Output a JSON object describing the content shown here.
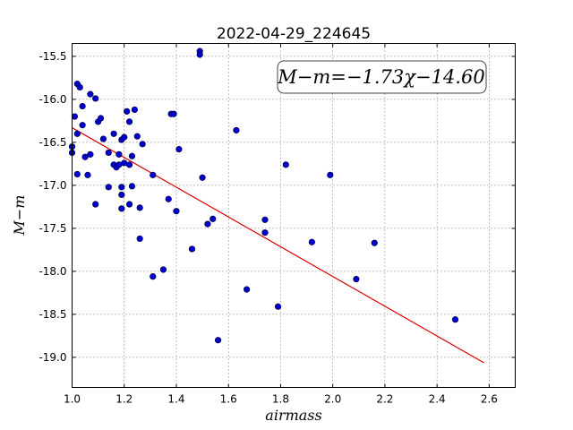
{
  "chart_data": {
    "type": "scatter",
    "title": "2022-04-29_224645",
    "xlabel": "airmass",
    "ylabel": "M−m",
    "xlim": [
      1.0,
      2.7
    ],
    "ylim": [
      -19.35,
      -15.35
    ],
    "xticks": [
      "1.0",
      "1.2",
      "1.4",
      "1.6",
      "1.8",
      "2.0",
      "2.2",
      "2.4",
      "2.6"
    ],
    "yticks": [
      "-15.5",
      "-16.0",
      "-16.5",
      "-17.0",
      "-17.5",
      "-18.0",
      "-18.5",
      "-19.0"
    ],
    "grid": true,
    "annotation": "M−m=−1.73χ−14.60",
    "colors": {
      "points": "#0000cc",
      "fit": "#dd0000"
    },
    "fit_line": {
      "slope": -1.73,
      "intercept": -14.6,
      "x": [
        1.0,
        2.58
      ]
    },
    "series": [
      {
        "points": [
          [
            1.0,
            -16.55
          ],
          [
            1.0,
            -16.62
          ],
          [
            1.01,
            -16.2
          ],
          [
            1.02,
            -15.82
          ],
          [
            1.03,
            -15.86
          ],
          [
            1.02,
            -16.4
          ],
          [
            1.04,
            -16.08
          ],
          [
            1.04,
            -16.3
          ],
          [
            1.05,
            -16.67
          ],
          [
            1.02,
            -16.87
          ],
          [
            1.07,
            -16.64
          ],
          [
            1.06,
            -16.88
          ],
          [
            1.07,
            -15.94
          ],
          [
            1.09,
            -15.99
          ],
          [
            1.1,
            -16.26
          ],
          [
            1.11,
            -16.22
          ],
          [
            1.12,
            -16.46
          ],
          [
            1.09,
            -17.22
          ],
          [
            1.14,
            -16.62
          ],
          [
            1.14,
            -17.02
          ],
          [
            1.16,
            -16.4
          ],
          [
            1.16,
            -16.76
          ],
          [
            1.17,
            -16.79
          ],
          [
            1.18,
            -16.64
          ],
          [
            1.18,
            -16.76
          ],
          [
            1.19,
            -16.47
          ],
          [
            1.2,
            -16.44
          ],
          [
            1.2,
            -16.74
          ],
          [
            1.19,
            -17.02
          ],
          [
            1.19,
            -17.11
          ],
          [
            1.19,
            -17.27
          ],
          [
            1.21,
            -16.14
          ],
          [
            1.22,
            -16.26
          ],
          [
            1.22,
            -16.76
          ],
          [
            1.23,
            -16.66
          ],
          [
            1.23,
            -17.01
          ],
          [
            1.22,
            -17.22
          ],
          [
            1.24,
            -16.12
          ],
          [
            1.25,
            -16.43
          ],
          [
            1.26,
            -17.26
          ],
          [
            1.27,
            -16.52
          ],
          [
            1.26,
            -17.62
          ],
          [
            1.31,
            -16.88
          ],
          [
            1.31,
            -18.06
          ],
          [
            1.35,
            -17.98
          ],
          [
            1.37,
            -17.16
          ],
          [
            1.38,
            -16.17
          ],
          [
            1.39,
            -16.17
          ],
          [
            1.4,
            -17.3
          ],
          [
            1.41,
            -16.58
          ],
          [
            1.46,
            -17.74
          ],
          [
            1.49,
            -15.44
          ],
          [
            1.49,
            -15.48
          ],
          [
            1.5,
            -16.91
          ],
          [
            1.52,
            -17.45
          ],
          [
            1.54,
            -17.39
          ],
          [
            1.56,
            -18.8
          ],
          [
            1.63,
            -16.36
          ],
          [
            1.67,
            -18.21
          ],
          [
            1.74,
            -17.4
          ],
          [
            1.74,
            -17.55
          ],
          [
            1.79,
            -18.41
          ],
          [
            1.82,
            -16.76
          ],
          [
            1.92,
            -17.66
          ],
          [
            1.99,
            -16.88
          ],
          [
            2.09,
            -18.09
          ],
          [
            2.16,
            -17.67
          ],
          [
            2.47,
            -18.56
          ]
        ]
      }
    ]
  }
}
